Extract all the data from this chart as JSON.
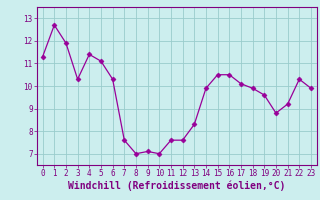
{
  "xlabel": "Windchill (Refroidissement éolien,°C)",
  "x": [
    0,
    1,
    2,
    3,
    4,
    5,
    6,
    7,
    8,
    9,
    10,
    11,
    12,
    13,
    14,
    15,
    16,
    17,
    18,
    19,
    20,
    21,
    22,
    23
  ],
  "y": [
    11.3,
    12.7,
    11.9,
    10.3,
    11.4,
    11.1,
    10.3,
    7.6,
    7.0,
    7.1,
    7.0,
    7.6,
    7.6,
    8.3,
    9.9,
    10.5,
    10.5,
    10.1,
    9.9,
    9.6,
    8.8,
    9.2,
    10.3,
    9.9
  ],
  "line_color": "#990099",
  "marker": "D",
  "marker_size": 2.5,
  "bg_color": "#cceeee",
  "grid_color": "#99cccc",
  "ylim": [
    6.5,
    13.5
  ],
  "yticks": [
    7,
    8,
    9,
    10,
    11,
    12,
    13
  ],
  "xticks": [
    0,
    1,
    2,
    3,
    4,
    5,
    6,
    7,
    8,
    9,
    10,
    11,
    12,
    13,
    14,
    15,
    16,
    17,
    18,
    19,
    20,
    21,
    22,
    23
  ],
  "tick_label_size": 5.5,
  "xlabel_size": 7,
  "label_color": "#800080"
}
